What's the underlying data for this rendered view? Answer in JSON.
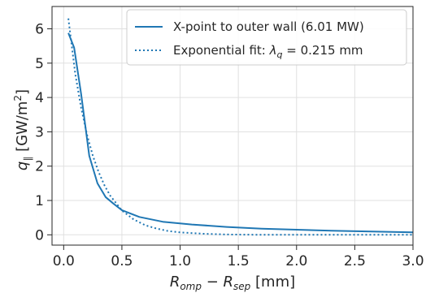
{
  "chart_data": {
    "type": "line",
    "title": "",
    "xlabel": "R_omp − R_sep [mm]",
    "ylabel": "q_∥ [GW/m²]",
    "xlim": [
      -0.1,
      3.0
    ],
    "ylim": [
      -0.3,
      6.65
    ],
    "xticks": [
      0.0,
      0.5,
      1.0,
      1.5,
      2.0,
      2.5,
      3.0
    ],
    "xtick_labels": [
      "0.0",
      "0.5",
      "1.0",
      "1.5",
      "2.0",
      "2.5",
      "3.0"
    ],
    "yticks": [
      0,
      1,
      2,
      3,
      4,
      5,
      6
    ],
    "ytick_labels": [
      "0",
      "1",
      "2",
      "3",
      "4",
      "5",
      "6"
    ],
    "grid": true,
    "legend_position": "top-right",
    "color": "#1f77b4",
    "series": [
      {
        "name": "X-point to outer wall (6.01 MW)",
        "style": "solid",
        "x": [
          0.04,
          0.09,
          0.15,
          0.22,
          0.29,
          0.36,
          0.43,
          0.5,
          0.65,
          0.85,
          1.1,
          1.4,
          1.7,
          2.0,
          2.3,
          2.6,
          3.0
        ],
        "y": [
          5.88,
          5.45,
          4.1,
          2.3,
          1.5,
          1.1,
          0.9,
          0.72,
          0.52,
          0.38,
          0.3,
          0.23,
          0.18,
          0.15,
          0.12,
          0.1,
          0.07
        ]
      },
      {
        "name": "Exponential fit: λ_q = 0.215 mm",
        "style": "dotted",
        "x": [
          0.04,
          0.1,
          0.15,
          0.2,
          0.25,
          0.3,
          0.35,
          0.4,
          0.5,
          0.6,
          0.7,
          0.8,
          0.9,
          1.0,
          1.2,
          1.4,
          1.7,
          2.0,
          2.5,
          3.0
        ],
        "y": [
          6.3,
          4.68,
          3.7,
          2.92,
          2.31,
          1.83,
          1.44,
          1.14,
          0.71,
          0.45,
          0.28,
          0.18,
          0.11,
          0.07,
          0.03,
          0.01,
          0.0,
          0.0,
          0.0,
          0.0
        ]
      }
    ]
  }
}
